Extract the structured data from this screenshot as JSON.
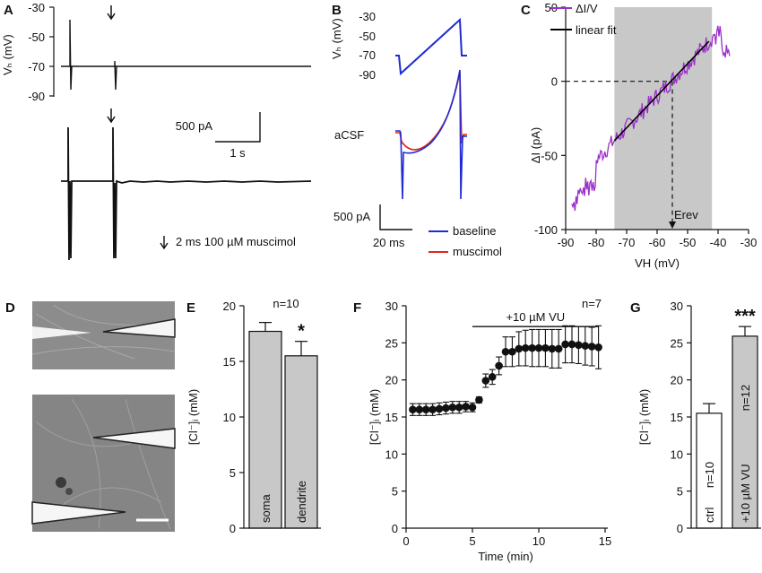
{
  "panels": {
    "A": {
      "label": "A",
      "ylabel": "Vₕ (mV)",
      "yticks": [
        "-30",
        "-50",
        "-70",
        "-90"
      ],
      "scalebar_current": "500 pA",
      "scalebar_time": "1 s",
      "stim_note": "2 ms 100 µM muscimol"
    },
    "B": {
      "label": "B",
      "ylabel_vh": "Vₕ (mV)",
      "yticks": [
        "-30",
        "-50",
        "-70",
        "-90"
      ],
      "condition": "aCSF",
      "scalebar_current": "500 pA",
      "scalebar_time": "20 ms",
      "legend": [
        {
          "name": "baseline",
          "color": "#1f2bd6"
        },
        {
          "name": "muscimol",
          "color": "#e0241c"
        }
      ]
    },
    "D": {
      "label": "D"
    }
  },
  "chart_data": [
    {
      "panel": "C",
      "label": "C",
      "type": "line",
      "xlabel": "VH (mV)",
      "ylabel": "ΔI (pA)",
      "xlim": [
        -90,
        -30
      ],
      "ylim": [
        -100,
        50
      ],
      "xticks": [
        "-90",
        "-80",
        "-70",
        "-60",
        "-50",
        "-40",
        "-30"
      ],
      "yticks": [
        "50",
        "0",
        "-50",
        "-100"
      ],
      "shaded_range_x": [
        -74,
        -42
      ],
      "rev_label": "Erev",
      "rev_x": -55,
      "legend": [
        {
          "name": "ΔI/V",
          "color": "#9b30c8"
        },
        {
          "name": "linear fit",
          "color": "#000000"
        }
      ],
      "fit_line": {
        "x": [
          -74,
          -43
        ],
        "y": [
          -40,
          27
        ]
      }
    },
    {
      "panel": "E",
      "label": "E",
      "type": "bar",
      "ylabel": "[Cl⁻]ᵢ (mM)",
      "ylim": [
        0,
        20
      ],
      "yticks": [
        "0",
        "5",
        "10",
        "15",
        "20"
      ],
      "n_label": "n=10",
      "significance": "*",
      "categories": [
        "soma",
        "dendrite"
      ],
      "values": [
        17.7,
        15.5
      ],
      "errors": [
        0.8,
        1.3
      ]
    },
    {
      "panel": "F",
      "label": "F",
      "type": "scatter",
      "xlabel": "Time (min)",
      "ylabel": "[Cl⁻]ᵢ (mM)",
      "xlim": [
        0,
        15
      ],
      "ylim": [
        0,
        30
      ],
      "xticks": [
        "0",
        "5",
        "10",
        "15"
      ],
      "yticks": [
        "0",
        "5",
        "10",
        "15",
        "20",
        "25",
        "30"
      ],
      "n_label": "n=7",
      "treatment_label": "+10 µM VU",
      "treatment_range": [
        5,
        14.5
      ],
      "x": [
        0.5,
        1.0,
        1.5,
        2.0,
        2.5,
        3.0,
        3.5,
        4.0,
        4.5,
        5.0,
        5.5,
        6.0,
        6.5,
        7.0,
        7.5,
        8.0,
        8.5,
        9.0,
        9.5,
        10.0,
        10.5,
        11.0,
        11.5,
        12.0,
        12.5,
        13.0,
        13.5,
        14.0,
        14.5
      ],
      "y": [
        16.0,
        16.0,
        16.0,
        16.0,
        16.1,
        16.2,
        16.3,
        16.3,
        16.4,
        16.3,
        17.3,
        19.9,
        20.4,
        21.9,
        23.8,
        23.8,
        24.2,
        24.3,
        24.3,
        24.3,
        24.3,
        24.2,
        24.2,
        24.8,
        24.8,
        24.7,
        24.6,
        24.5,
        24.4
      ],
      "errors": [
        0.8,
        0.8,
        0.8,
        0.8,
        0.8,
        0.8,
        0.8,
        0.8,
        0.7,
        0.6,
        0.4,
        0.9,
        1.0,
        1.2,
        2.0,
        2.0,
        2.3,
        2.4,
        2.5,
        2.5,
        2.5,
        2.6,
        2.6,
        2.5,
        2.5,
        2.5,
        2.6,
        2.6,
        2.9
      ]
    },
    {
      "panel": "G",
      "label": "G",
      "type": "bar",
      "ylabel": "[Cl⁻]ᵢ (mM)",
      "ylim": [
        0,
        30
      ],
      "yticks": [
        "0",
        "5",
        "10",
        "15",
        "20",
        "25",
        "30"
      ],
      "significance": "***",
      "categories": [
        "ctrl",
        "+10 µM VU"
      ],
      "n_labels": [
        "n=10",
        "n=12"
      ],
      "values": [
        15.5,
        25.9
      ],
      "errors": [
        1.3,
        1.3
      ],
      "fills": [
        "#ffffff",
        "#c8c8c8"
      ]
    }
  ]
}
